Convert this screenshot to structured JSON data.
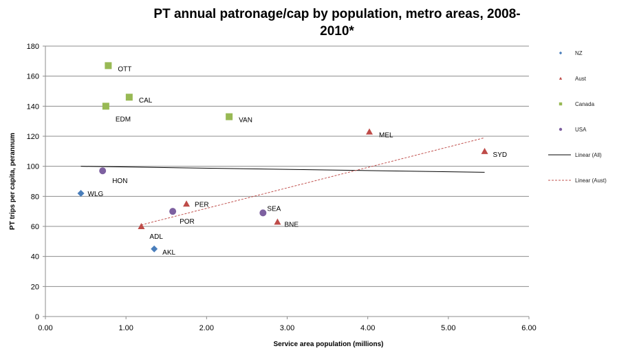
{
  "chart_data": {
    "type": "scatter",
    "title": "PT annual patronage/cap by population, metro areas, 2008-2010*",
    "title_line1": "PT annual patronage/cap by population, metro areas, 2008-",
    "title_line2": "2010*",
    "xlabel": "Service area population  (millions)",
    "ylabel": "PT trips per capita, perannum",
    "xlim": [
      0,
      6
    ],
    "ylim": [
      0,
      180
    ],
    "x_ticks": [
      "0.00",
      "1.00",
      "2.00",
      "3.00",
      "4.00",
      "5.00",
      "6.00"
    ],
    "y_ticks": [
      "0",
      "20",
      "40",
      "60",
      "80",
      "100",
      "120",
      "140",
      "160",
      "180"
    ],
    "series": [
      {
        "name": "NZ",
        "marker": "diamond",
        "color": "#4a7ebb",
        "points": [
          {
            "label": "WLG",
            "x": 0.44,
            "y": 82
          },
          {
            "label": "AKL",
            "x": 1.35,
            "y": 45
          }
        ]
      },
      {
        "name": "Aust",
        "marker": "triangle",
        "color": "#be4b48",
        "points": [
          {
            "label": "SYD",
            "x": 5.45,
            "y": 110
          },
          {
            "label": "MEL",
            "x": 4.02,
            "y": 123
          },
          {
            "label": "PER",
            "x": 1.75,
            "y": 75
          },
          {
            "label": "BNE",
            "x": 2.88,
            "y": 63
          },
          {
            "label": "ADL",
            "x": 1.19,
            "y": 60
          }
        ]
      },
      {
        "name": "Canada",
        "marker": "square",
        "color": "#98b954",
        "points": [
          {
            "label": "OTT",
            "x": 0.78,
            "y": 167
          },
          {
            "label": "CAL",
            "x": 1.04,
            "y": 146
          },
          {
            "label": "EDM",
            "x": 0.75,
            "y": 140
          },
          {
            "label": "VAN",
            "x": 2.28,
            "y": 133
          }
        ]
      },
      {
        "name": "USA",
        "marker": "circle",
        "color": "#7d60a0",
        "points": [
          {
            "label": "HON",
            "x": 0.71,
            "y": 97
          },
          {
            "label": "POR",
            "x": 1.58,
            "y": 70
          },
          {
            "label": "SEA",
            "x": 2.7,
            "y": 69
          }
        ]
      }
    ],
    "trendlines": [
      {
        "name": "Linear (All)",
        "color": "#000000",
        "dashed": false,
        "x": [
          0.44,
          5.45
        ],
        "y": [
          100,
          96
        ]
      },
      {
        "name": "Linear (Aust)",
        "color": "#c0504d",
        "dashed": true,
        "x": [
          1.19,
          5.45
        ],
        "y": [
          61,
          119
        ]
      }
    ],
    "legend": [
      "NZ",
      "Aust",
      "Canada",
      "USA",
      "Linear (All)",
      "Linear (Aust)"
    ],
    "legend_position": "right",
    "grid": "horizontal"
  }
}
